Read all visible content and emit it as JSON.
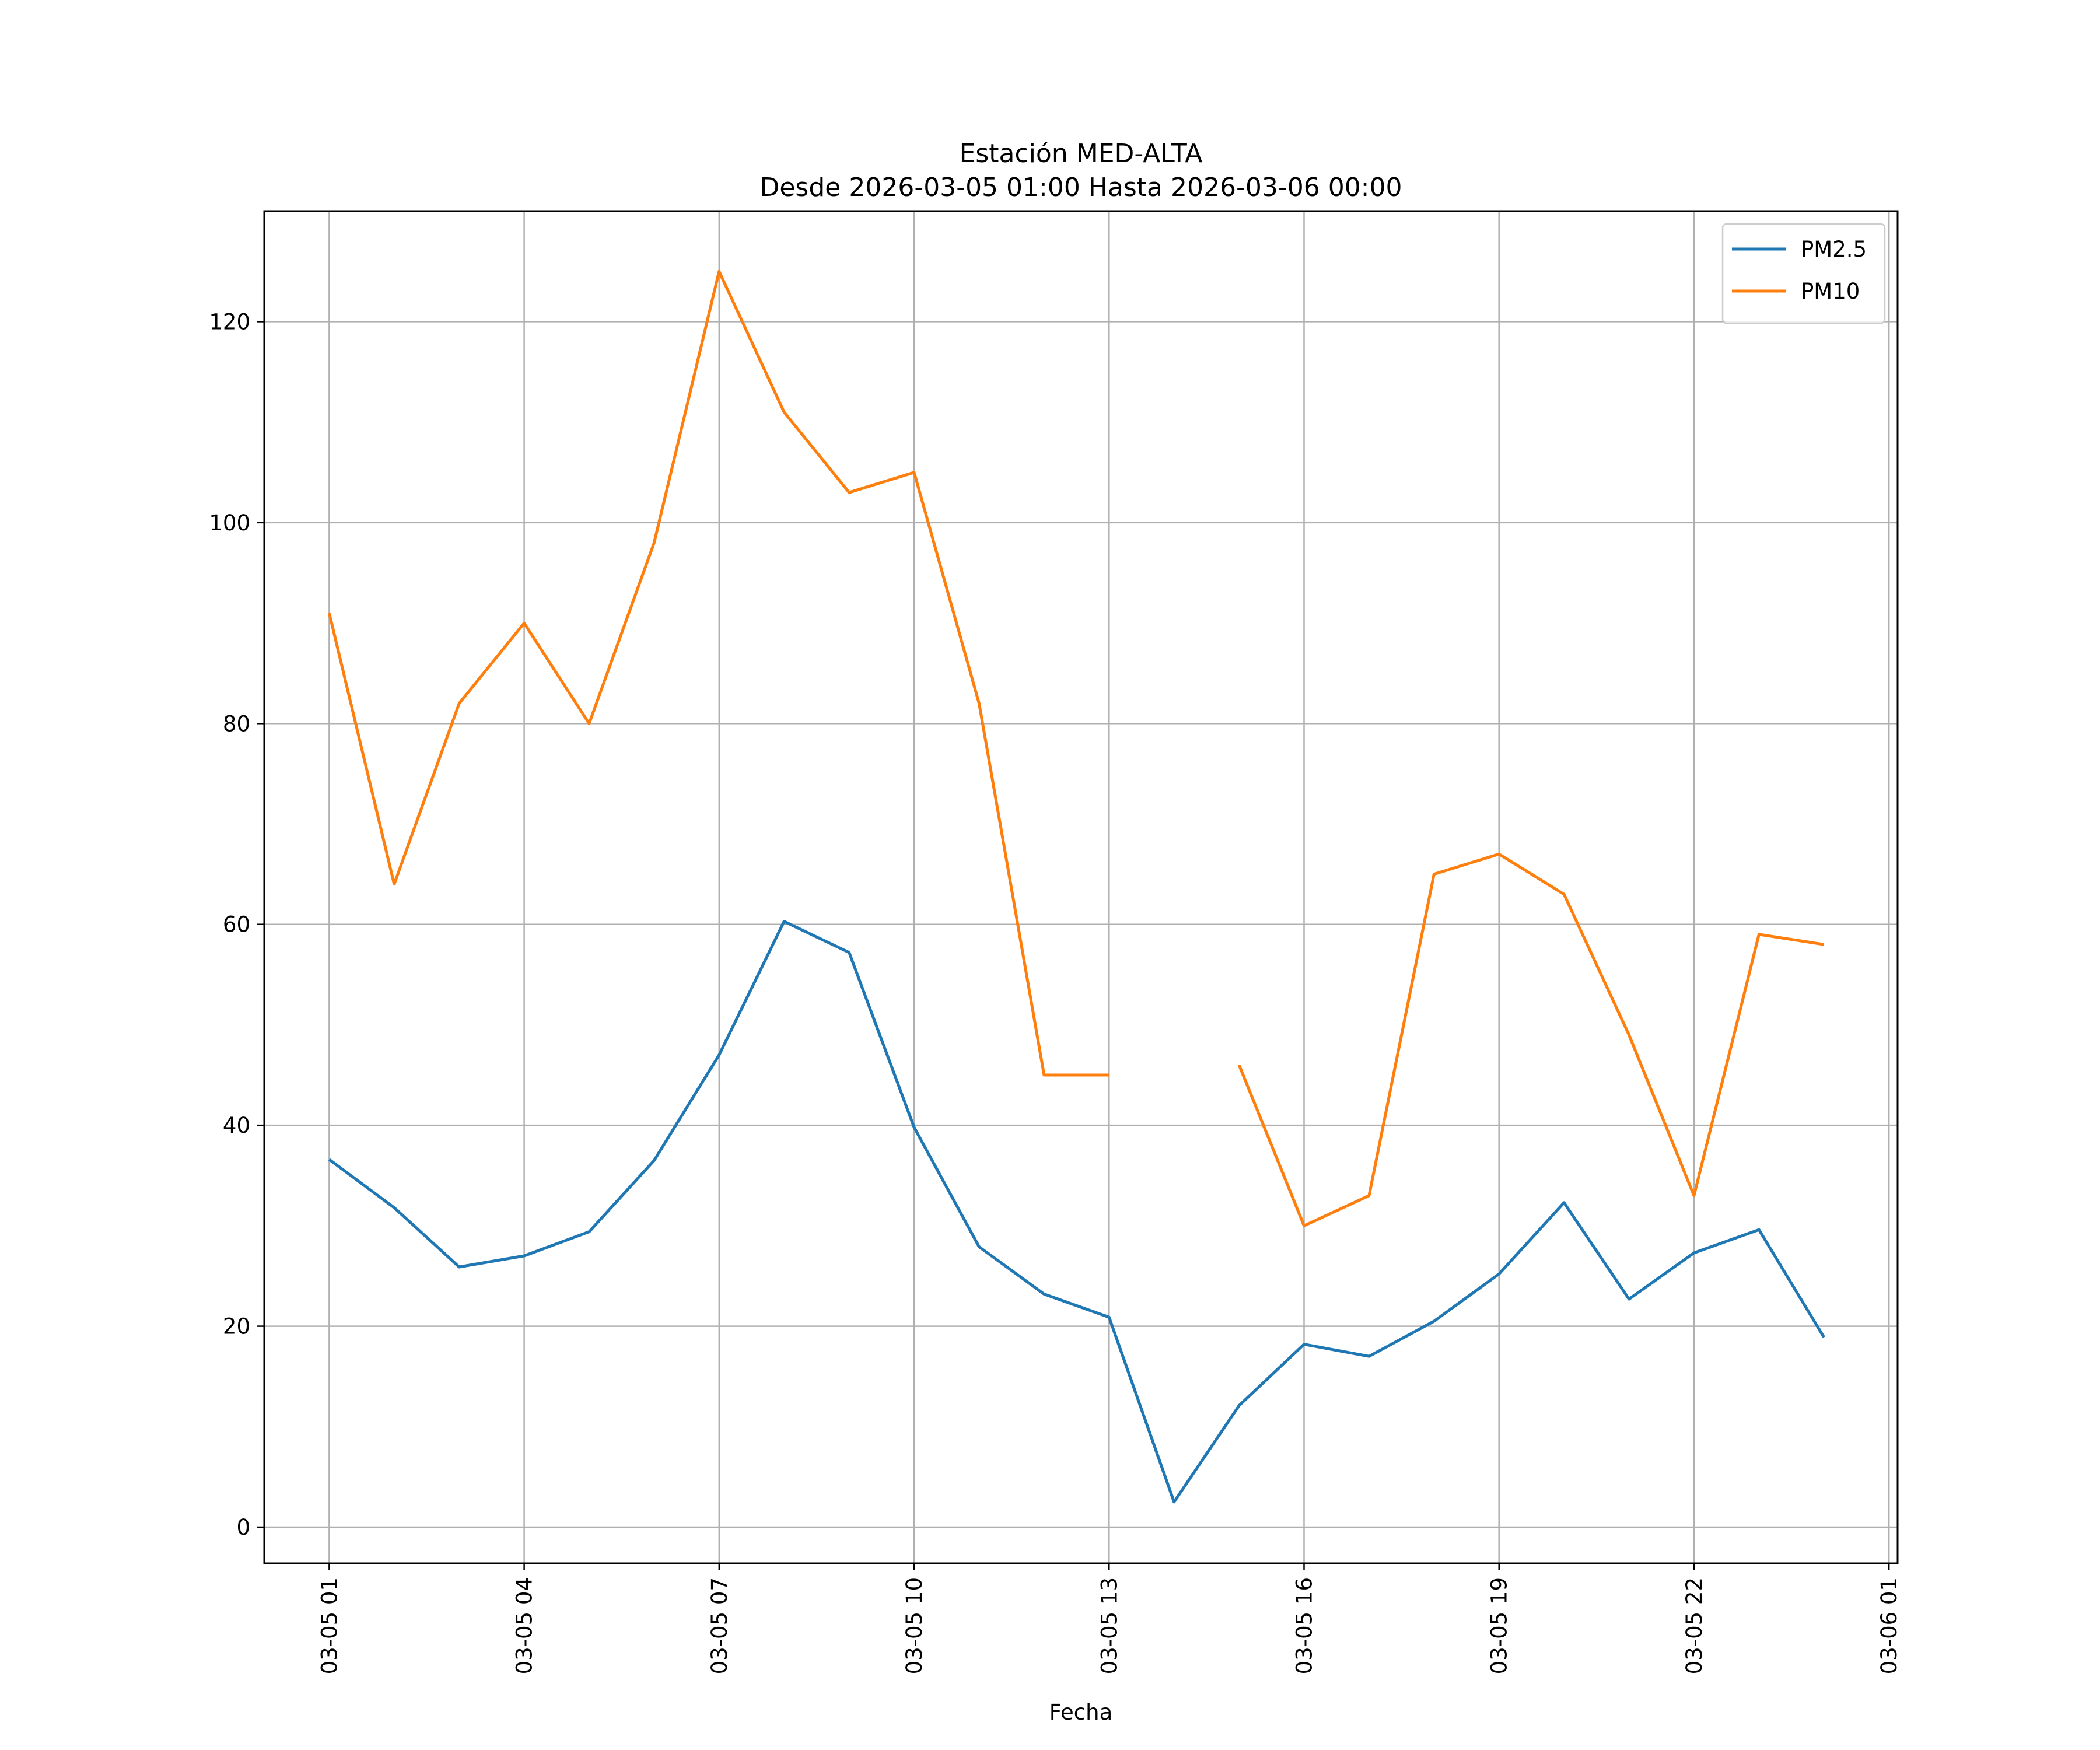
{
  "chart_data": {
    "type": "line",
    "title": "Estación MED-ALTA",
    "subtitle": "Desde 2026-03-05 01:00 Hasta 2026-03-06 00:00",
    "xlabel": "Fecha",
    "ylabel": "",
    "x": [
      "2026-03-05 01:00",
      "2026-03-05 02:00",
      "2026-03-05 03:00",
      "2026-03-05 04:00",
      "2026-03-05 05:00",
      "2026-03-05 06:00",
      "2026-03-05 07:00",
      "2026-03-05 08:00",
      "2026-03-05 09:00",
      "2026-03-05 10:00",
      "2026-03-05 11:00",
      "2026-03-05 12:00",
      "2026-03-05 13:00",
      "2026-03-05 14:00",
      "2026-03-05 15:00",
      "2026-03-05 16:00",
      "2026-03-05 17:00",
      "2026-03-05 18:00",
      "2026-03-05 19:00",
      "2026-03-05 20:00",
      "2026-03-05 21:00",
      "2026-03-05 22:00",
      "2026-03-05 23:00",
      "2026-03-06 00:00"
    ],
    "series": [
      {
        "name": "PM2.5",
        "color": "#1f77b4",
        "values": [
          36.6,
          31.8,
          25.9,
          27.0,
          29.4,
          36.5,
          47.0,
          60.3,
          57.2,
          39.8,
          27.9,
          23.2,
          20.9,
          2.5,
          12.1,
          18.2,
          17.0,
          20.5,
          25.2,
          32.3,
          22.7,
          27.3,
          29.6,
          18.9
        ]
      },
      {
        "name": "PM10",
        "color": "#ff7f0e",
        "values": [
          91,
          64,
          82,
          90,
          80,
          98,
          125,
          111,
          103,
          105,
          82,
          45,
          45,
          null,
          46,
          30,
          33,
          65,
          67,
          63,
          49,
          33,
          59,
          58
        ]
      }
    ],
    "ylim": [
      -3.6,
      131
    ],
    "yticks": [
      0,
      20,
      40,
      60,
      80,
      100,
      120
    ],
    "xlim": [
      "2026-03-05 00:00",
      "2026-03-06 01:08"
    ],
    "xticks": [
      {
        "x": "2026-03-05 01:00",
        "label": "03-05 01"
      },
      {
        "x": "2026-03-05 04:00",
        "label": "03-05 04"
      },
      {
        "x": "2026-03-05 07:00",
        "label": "03-05 07"
      },
      {
        "x": "2026-03-05 10:00",
        "label": "03-05 10"
      },
      {
        "x": "2026-03-05 13:00",
        "label": "03-05 13"
      },
      {
        "x": "2026-03-05 16:00",
        "label": "03-05 16"
      },
      {
        "x": "2026-03-05 19:00",
        "label": "03-05 19"
      },
      {
        "x": "2026-03-05 22:00",
        "label": "03-05 22"
      },
      {
        "x": "2026-03-06 01:00",
        "label": "03-06 01"
      }
    ],
    "grid": true,
    "legend": "top-right"
  }
}
